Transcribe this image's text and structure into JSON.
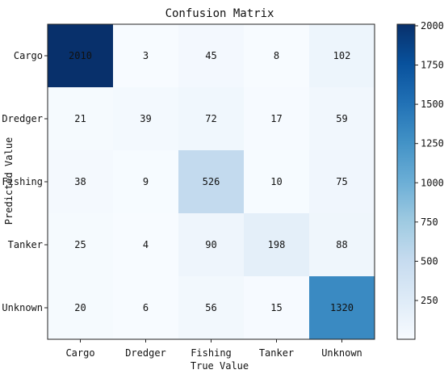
{
  "chart_data": {
    "type": "heatmap",
    "title": "Confusion Matrix",
    "xlabel": "True Value",
    "ylabel": "Predicted Value",
    "x_categories": [
      "Cargo",
      "Dredger",
      "Fishing",
      "Tanker",
      "Unknown"
    ],
    "y_categories": [
      "Cargo",
      "Dredger",
      "Fishing",
      "Tanker",
      "Unknown"
    ],
    "values": [
      [
        2010,
        3,
        45,
        8,
        102
      ],
      [
        21,
        39,
        72,
        17,
        59
      ],
      [
        38,
        9,
        526,
        10,
        75
      ],
      [
        25,
        4,
        90,
        198,
        88
      ],
      [
        20,
        6,
        56,
        15,
        1320
      ]
    ],
    "colormap": "Blues",
    "color_range": [
      3,
      2010
    ],
    "colorbar_ticks": [
      250,
      500,
      750,
      1000,
      1250,
      1500,
      1750,
      2000
    ],
    "colors": {
      "low": "#f7fbff",
      "high": "#08306b"
    }
  }
}
